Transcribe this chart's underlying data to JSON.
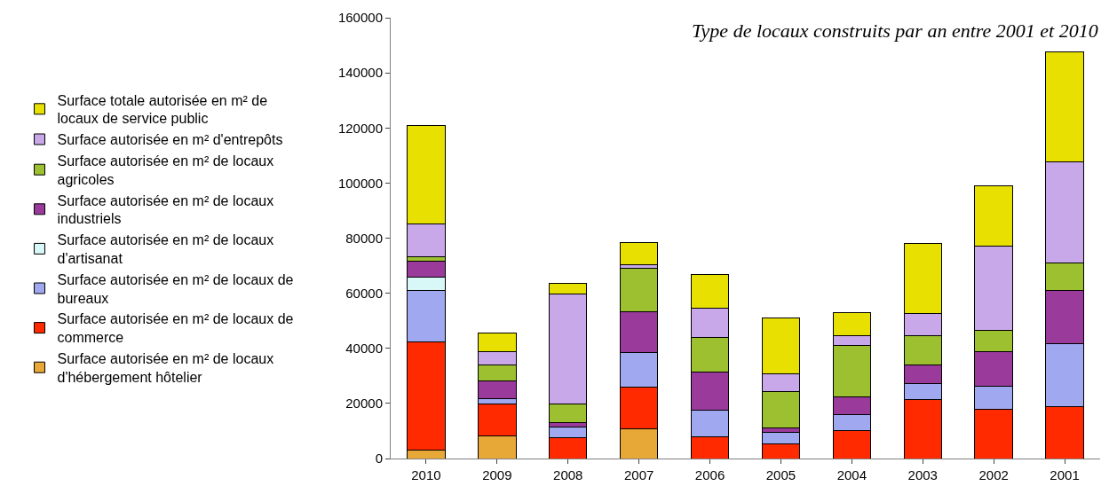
{
  "chart_data": {
    "type": "bar",
    "title": "Type de locaux construits par an entre 2001 et 2010",
    "stacked": true,
    "categories": [
      "2010",
      "2009",
      "2008",
      "2007",
      "2006",
      "2005",
      "2004",
      "2003",
      "2002",
      "2001"
    ],
    "series": [
      {
        "name": "Surface autorisée en m² de locaux d'hébergement hôtelier",
        "color": "#e8a838",
        "values": [
          3200,
          8300,
          0,
          10900,
          0,
          0,
          0,
          0,
          0,
          0
        ]
      },
      {
        "name": "Surface autorisée en m² de locaux de commerce",
        "color": "#ff2a00",
        "values": [
          39000,
          11600,
          7700,
          14900,
          7900,
          5400,
          10200,
          21300,
          17900,
          18700
        ]
      },
      {
        "name": "Surface autorisée en m² de locaux de bureaux",
        "color": "#a0a8f0",
        "values": [
          18900,
          1700,
          3600,
          12800,
          9800,
          4000,
          5700,
          6000,
          8500,
          23000
        ]
      },
      {
        "name": "Surface autorisée en m² de locaux d'artisanat",
        "color": "#d8f8f8",
        "values": [
          4700,
          0,
          0,
          0,
          0,
          0,
          0,
          0,
          0,
          0
        ]
      },
      {
        "name": "Surface autorisée en m² de locaux industriels",
        "color": "#9a3a9a",
        "values": [
          5800,
          6500,
          1800,
          14600,
          13800,
          1700,
          6500,
          6800,
          12400,
          19200
        ]
      },
      {
        "name": "Surface autorisée en m² de locaux agricoles",
        "color": "#9cc030",
        "values": [
          1500,
          6000,
          6700,
          15700,
          12400,
          13300,
          18700,
          10600,
          7600,
          10000
        ]
      },
      {
        "name": "Surface autorisée en m² d'entrepôts",
        "color": "#c8a8e8",
        "values": [
          12200,
          4700,
          39800,
          1600,
          10800,
          6200,
          3600,
          8000,
          30700,
          36700
        ]
      },
      {
        "name": "Surface totale autorisée en m² de locaux de service public",
        "color": "#e8e000",
        "values": [
          35600,
          6600,
          3900,
          8000,
          12200,
          20500,
          8100,
          25500,
          22000,
          39900
        ]
      }
    ],
    "ylim": [
      0,
      160000
    ],
    "yticks": [
      0,
      20000,
      40000,
      60000,
      80000,
      100000,
      120000,
      140000,
      160000
    ],
    "legend": "left"
  }
}
